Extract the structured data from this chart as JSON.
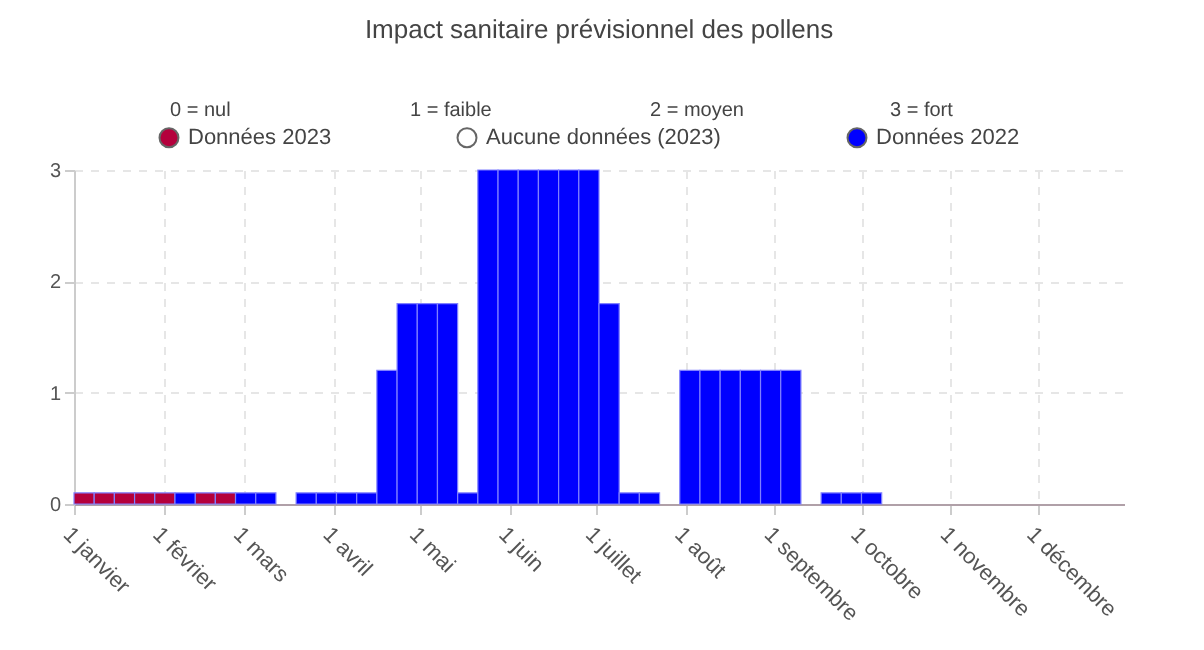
{
  "chart_data": {
    "type": "bar",
    "title": "Impact sanitaire prévisionnel des pollens",
    "annotations": [
      "0 = nul",
      "1 = faible",
      "2 = moyen",
      "3 = fort"
    ],
    "x": [
      "2023-01-01",
      "2023-01-08",
      "2023-01-15",
      "2023-01-22",
      "2023-01-29",
      "2023-02-05",
      "2023-02-12",
      "2023-02-19",
      "2023-02-26",
      "2023-03-05",
      "2023-03-12",
      "2023-03-19",
      "2023-03-26",
      "2023-04-02",
      "2023-04-09",
      "2023-04-16",
      "2023-04-23",
      "2023-04-30",
      "2023-05-07",
      "2023-05-14",
      "2023-05-21",
      "2023-05-28",
      "2023-06-04",
      "2023-06-11",
      "2023-06-18",
      "2023-06-25",
      "2023-07-02",
      "2023-07-09",
      "2023-07-16",
      "2023-07-23",
      "2023-07-30",
      "2023-08-06",
      "2023-08-13",
      "2023-08-20",
      "2023-08-27",
      "2023-09-03",
      "2023-09-10",
      "2023-09-17",
      "2023-09-24",
      "2023-10-01"
    ],
    "series": [
      {
        "name": "Données 2023",
        "color": "#b4003c",
        "values": [
          0.1,
          0.1,
          0.1,
          0.1,
          0.1,
          null,
          0.1,
          0.1,
          null,
          null,
          null,
          null,
          null,
          null,
          null,
          null,
          null,
          null,
          null,
          null,
          null,
          null,
          null,
          null,
          null,
          null,
          null,
          null,
          null,
          null,
          null,
          null,
          null,
          null,
          null,
          null,
          null,
          null,
          null,
          null
        ]
      },
      {
        "name": "Aucune données (2023)",
        "color": "#ffffff",
        "values": [
          null,
          null,
          null,
          null,
          null,
          null,
          null,
          null,
          null,
          null,
          null,
          null,
          null,
          null,
          null,
          null,
          null,
          null,
          null,
          null,
          null,
          null,
          null,
          null,
          null,
          null,
          null,
          null,
          null,
          null,
          null,
          null,
          null,
          null,
          null,
          null,
          null,
          null,
          null,
          null
        ]
      },
      {
        "name": "Données 2022",
        "color": "#0000ff",
        "values": [
          null,
          null,
          null,
          null,
          null,
          0.1,
          null,
          null,
          0.1,
          0.1,
          null,
          0.1,
          0.1,
          0.1,
          0.1,
          1.2,
          1.8,
          1.8,
          1.8,
          0.1,
          3,
          3,
          3,
          3,
          3,
          3,
          1.8,
          0.1,
          0.1,
          null,
          1.2,
          1.2,
          1.2,
          1.2,
          1.2,
          1.2,
          null,
          0.1,
          0.1,
          0.1
        ]
      }
    ],
    "xlim": [
      "2023-01-01",
      "2023-12-31"
    ],
    "xticks": [
      {
        "value": "2023-01-01",
        "label": "1 janvier"
      },
      {
        "value": "2023-02-01",
        "label": "1 février"
      },
      {
        "value": "2023-03-01",
        "label": "1 mars"
      },
      {
        "value": "2023-04-01",
        "label": "1 avril"
      },
      {
        "value": "2023-05-01",
        "label": "1 mai"
      },
      {
        "value": "2023-06-01",
        "label": "1 juin"
      },
      {
        "value": "2023-07-01",
        "label": "1 juillet"
      },
      {
        "value": "2023-08-01",
        "label": "1 août"
      },
      {
        "value": "2023-09-01",
        "label": "1 septembre"
      },
      {
        "value": "2023-10-01",
        "label": "1 octobre"
      },
      {
        "value": "2023-11-01",
        "label": "1 novembre"
      },
      {
        "value": "2023-12-01",
        "label": "1 décembre"
      }
    ],
    "ylim": [
      0,
      3
    ],
    "yticks": [
      0,
      1,
      2,
      3
    ],
    "grid": true,
    "legend": "top"
  }
}
